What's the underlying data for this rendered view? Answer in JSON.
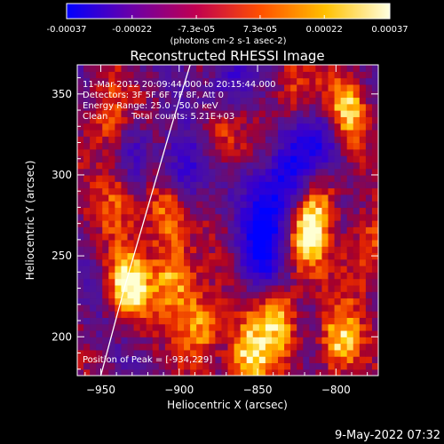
{
  "chart_data": {
    "type": "heatmap",
    "title": "Reconstructed RHESSI Image",
    "xlabel": "Heliocentric X (arcsec)",
    "ylabel": "Heliocentric Y (arcsec)",
    "xlim": [
      -965,
      -773
    ],
    "ylim": [
      176,
      368
    ],
    "x_ticks": [
      -950,
      -900,
      -850,
      -800
    ],
    "y_ticks": [
      200,
      250,
      300,
      350
    ],
    "grid": false,
    "colorbar": {
      "position": "top",
      "range": [
        -0.00037,
        0.00037
      ],
      "tick_values": [
        -0.00037,
        -0.00022,
        -7.3e-05,
        7.3e-05,
        0.00022,
        0.00037
      ],
      "tick_labels": [
        "-0.00037",
        "-0.00022",
        "-7.3e-05",
        "7.3e-05",
        "0.00022",
        "0.00037"
      ],
      "unit_label": "(photons cm-2 s-1 asec-2)",
      "colors": [
        "#0000ff",
        "#6a00a8",
        "#c00050",
        "#ff5000",
        "#ffc000",
        "#ffffe0"
      ]
    },
    "annotations": {
      "time_range": "11-Mar-2012 20:09:44.000 to 20:15:44.000",
      "detectors": "Detectors: 3F 5F 6F 7F 8F, Att 0",
      "energy": "Energy Range: 25.0 - 50.0 keV",
      "algorithm": "Clean",
      "total_counts": "Total counts: 5.21E+03",
      "peak": "Position of Peak = [-934,229]"
    },
    "limb_line": {
      "color": "#ffffff",
      "points": [
        [
          -950,
          176
        ],
        [
          -935,
          230
        ],
        [
          -905,
          330
        ],
        [
          -893,
          368
        ]
      ]
    },
    "bright_sources": [
      {
        "x": -934,
        "y": 229,
        "intensity": 1.0
      },
      {
        "x": -905,
        "y": 235,
        "intensity": 0.9
      },
      {
        "x": -912,
        "y": 276,
        "intensity": 0.8
      },
      {
        "x": -888,
        "y": 205,
        "intensity": 0.85
      },
      {
        "x": -858,
        "y": 185,
        "intensity": 0.95
      },
      {
        "x": -838,
        "y": 210,
        "intensity": 0.85
      },
      {
        "x": -820,
        "y": 260,
        "intensity": 0.9
      },
      {
        "x": -812,
        "y": 290,
        "intensity": 0.8
      },
      {
        "x": -795,
        "y": 340,
        "intensity": 0.85
      },
      {
        "x": -800,
        "y": 195,
        "intensity": 0.9
      },
      {
        "x": -948,
        "y": 332,
        "intensity": 0.7
      },
      {
        "x": -940,
        "y": 285,
        "intensity": 0.6
      },
      {
        "x": -875,
        "y": 325,
        "intensity": 0.55
      },
      {
        "x": -830,
        "y": 350,
        "intensity": 0.5
      },
      {
        "x": -782,
        "y": 250,
        "intensity": 0.75
      }
    ],
    "dim_sources": [
      {
        "x": -900,
        "y": 300,
        "intensity": -0.8
      },
      {
        "x": -850,
        "y": 250,
        "intensity": -0.9
      },
      {
        "x": -830,
        "y": 300,
        "intensity": -0.95
      },
      {
        "x": -870,
        "y": 355,
        "intensity": -0.7
      },
      {
        "x": -810,
        "y": 315,
        "intensity": -0.8
      },
      {
        "x": -845,
        "y": 280,
        "intensity": -0.85
      },
      {
        "x": -930,
        "y": 310,
        "intensity": -0.5
      }
    ]
  },
  "footer": {
    "timestamp": "9-May-2022 07:32"
  }
}
